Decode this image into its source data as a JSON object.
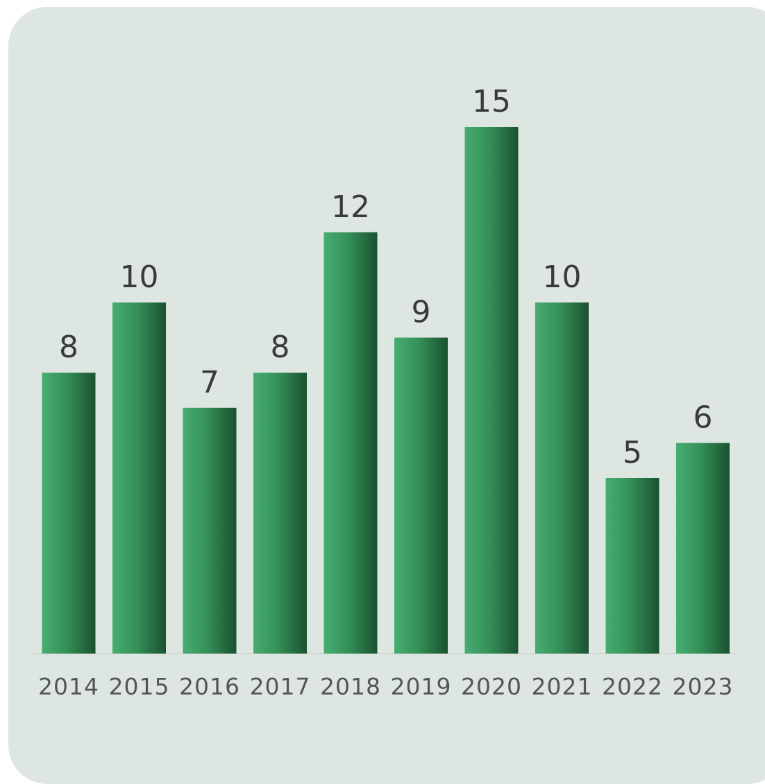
{
  "chart_data": {
    "type": "bar",
    "categories": [
      "2014",
      "2015",
      "2016",
      "2017",
      "2018",
      "2019",
      "2020",
      "2021",
      "2022",
      "2023"
    ],
    "values": [
      8,
      10,
      7,
      8,
      12,
      9,
      15,
      10,
      5,
      6
    ],
    "data_labels": [
      "8",
      "10",
      "7",
      "8",
      "12",
      "9",
      "15",
      "10",
      "5",
      "6"
    ],
    "title": "",
    "xlabel": "",
    "ylabel": "",
    "ylim": [
      0,
      15
    ],
    "grid": false,
    "legend": "none",
    "colors": {
      "bar_light": "#47ad72",
      "bar_mid": "#359058",
      "bar_dark": "#1a522f",
      "card_background": "#dde6e1",
      "baseline": "#cfd8d3"
    }
  }
}
